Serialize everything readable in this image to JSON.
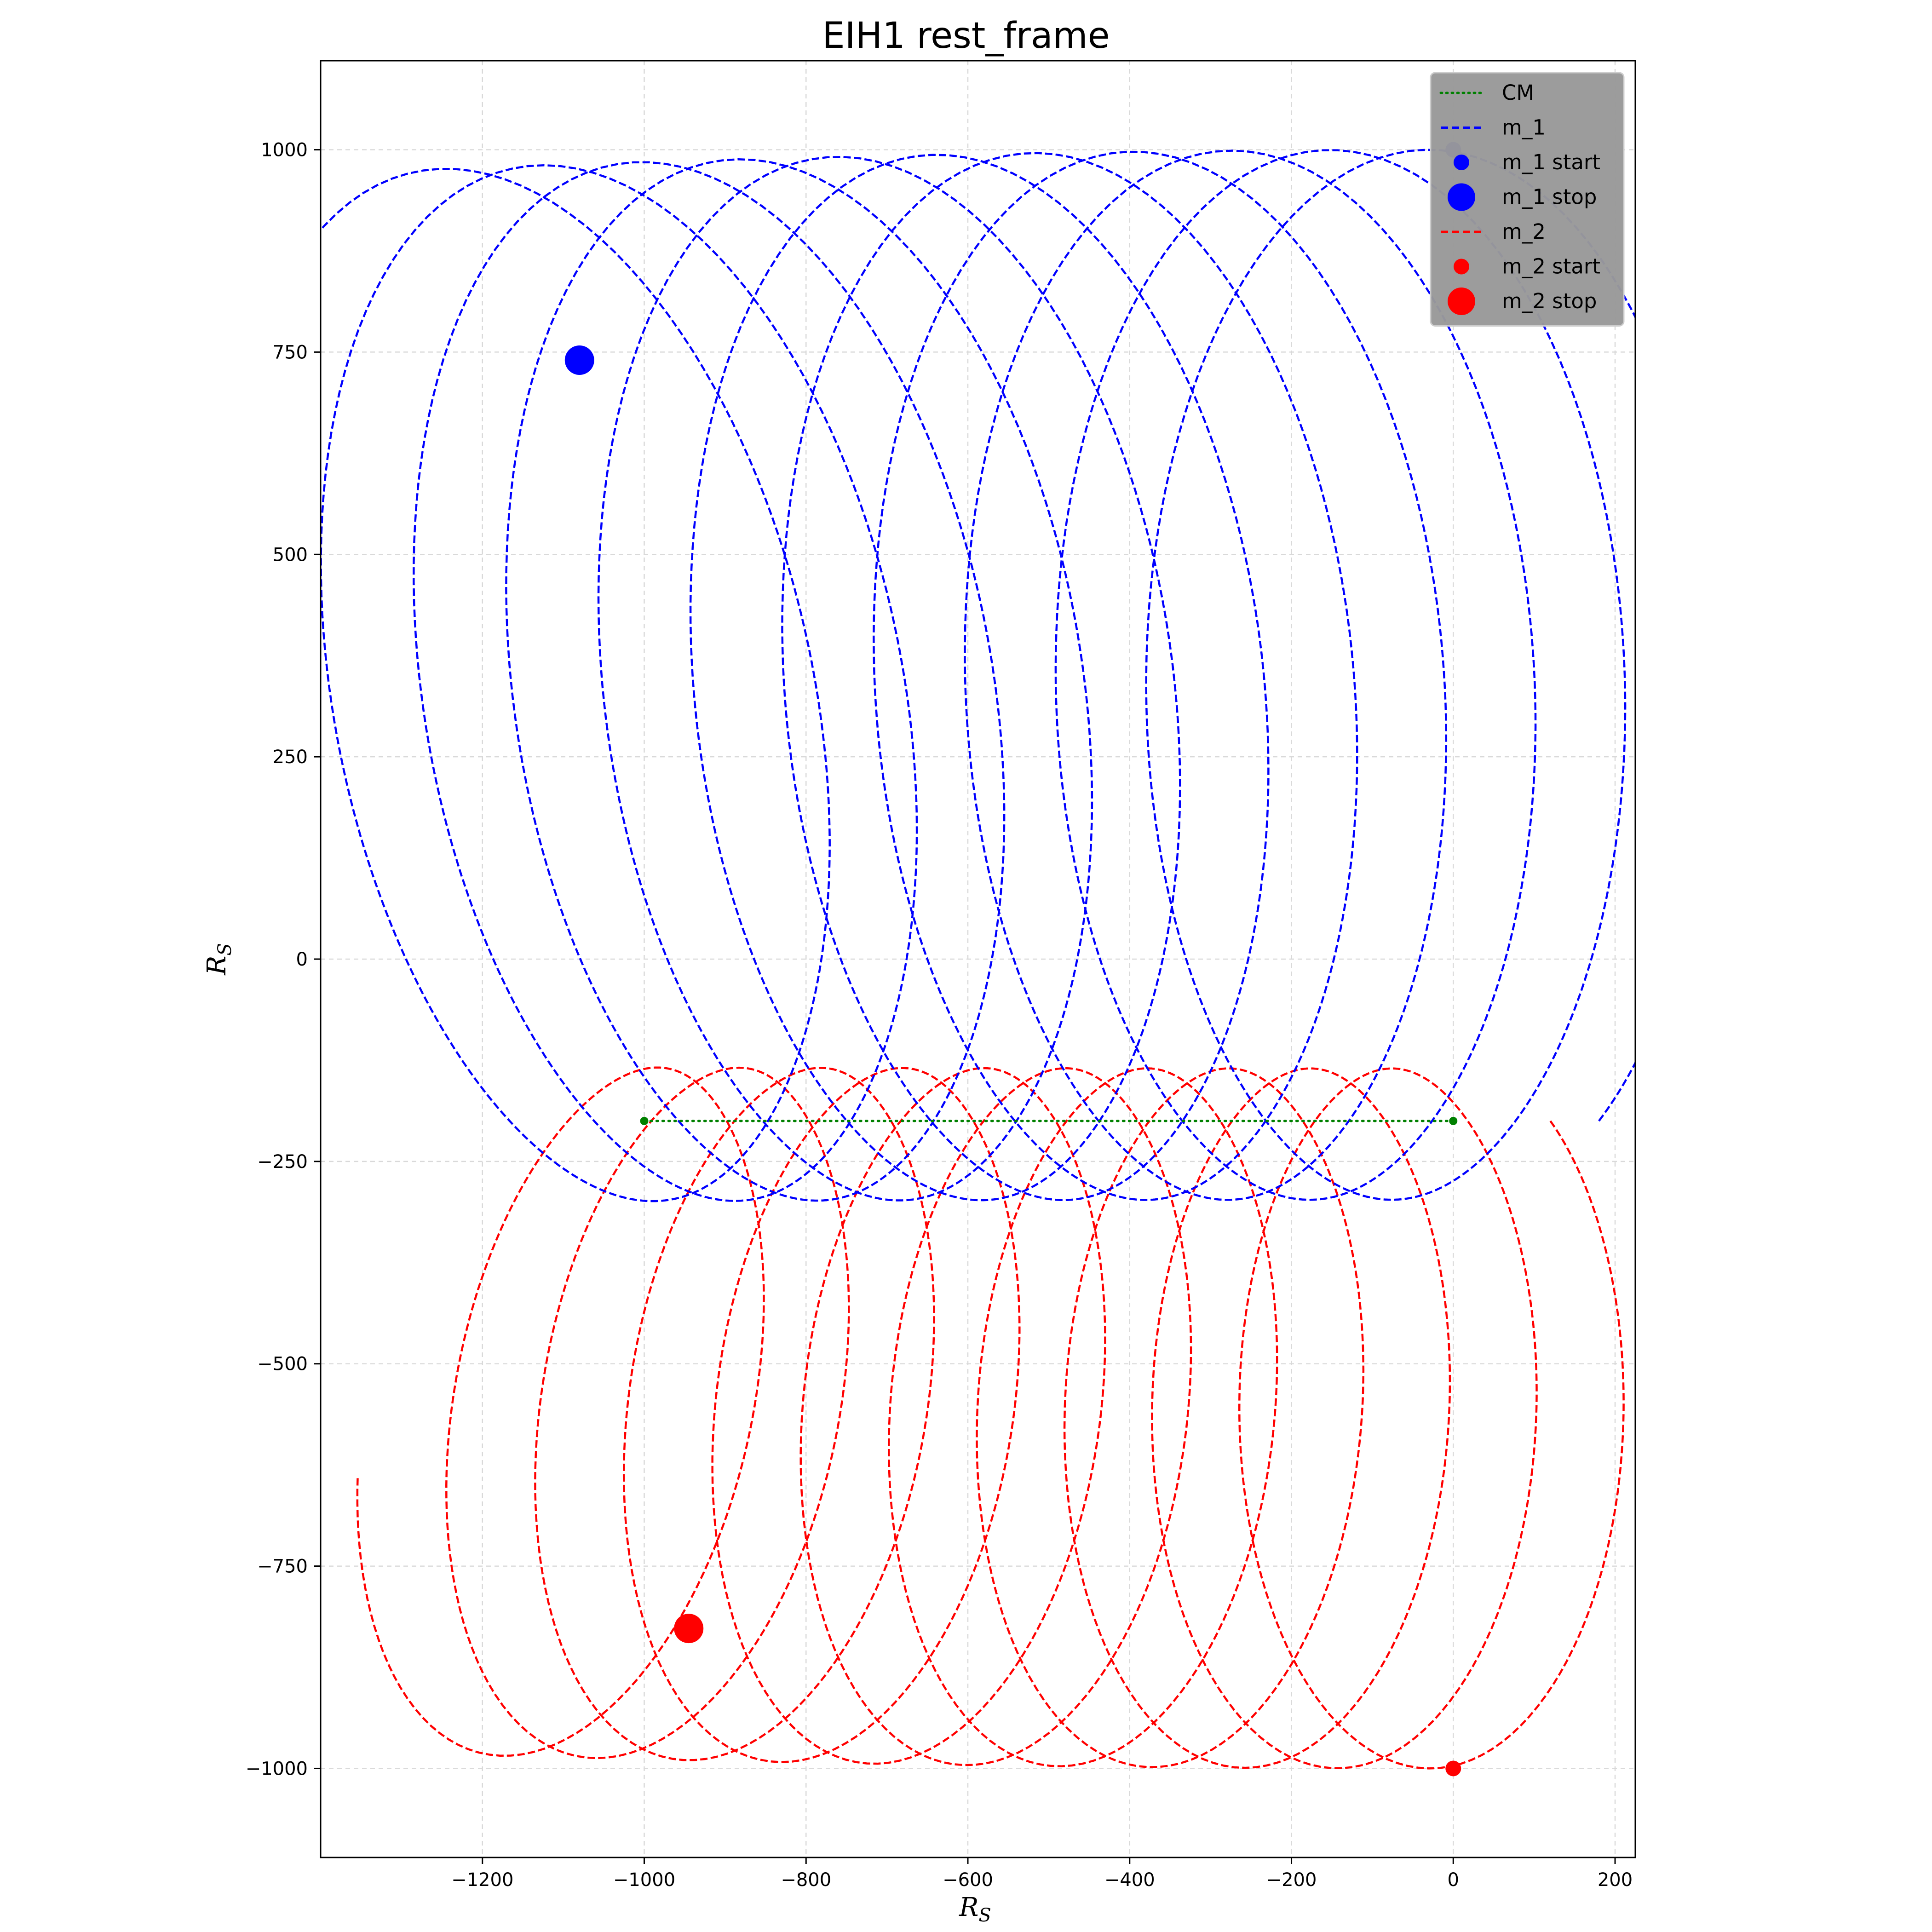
{
  "chart_data": {
    "type": "line",
    "title": "EIH1 rest_frame",
    "xlabel": "R",
    "xlabel_sub": "S",
    "ylabel": "R",
    "ylabel_sub": "S",
    "xlim": [
      -1400,
      225
    ],
    "ylim": [
      -1110,
      1110
    ],
    "xticks": [
      -1200,
      -1000,
      -800,
      -600,
      -400,
      -200,
      0,
      200
    ],
    "yticks": [
      -1000,
      -750,
      -500,
      -250,
      0,
      250,
      500,
      750,
      1000
    ],
    "xtick_labels": [
      "−1200",
      "−1000",
      "−800",
      "−600",
      "−400",
      "−200",
      "0",
      "200"
    ],
    "ytick_labels": [
      "−1000",
      "−750",
      "−500",
      "−250",
      "0",
      "250",
      "500",
      "750",
      "1000"
    ],
    "grid": true,
    "legend_position": "upper right",
    "colors": {
      "cm": "#008000",
      "m1": "#0000ff",
      "m2": "#ff0000"
    },
    "legend": [
      {
        "label": "CM",
        "kind": "line",
        "style": "dotted",
        "color": "#008000"
      },
      {
        "label": "m_1",
        "kind": "line",
        "style": "dashed",
        "color": "#0000ff"
      },
      {
        "label": "m_1 start",
        "kind": "marker",
        "size": "small",
        "color": "#0000ff"
      },
      {
        "label": "m_1 stop",
        "kind": "marker",
        "size": "large",
        "color": "#0000ff"
      },
      {
        "label": "m_2",
        "kind": "line",
        "style": "dashed",
        "color": "#ff0000"
      },
      {
        "label": "m_2 start",
        "kind": "marker",
        "size": "small",
        "color": "#ff0000"
      },
      {
        "label": "m_2 stop",
        "kind": "marker",
        "size": "large",
        "color": "#ff0000"
      }
    ],
    "series": [
      {
        "name": "CM",
        "style": "dotted",
        "color": "#008000",
        "x": [
          0,
          -1000
        ],
        "y": [
          -200,
          -200
        ],
        "endpoints": [
          [
            0,
            -200
          ],
          [
            -1000,
            -200
          ]
        ]
      },
      {
        "name": "m_1",
        "style": "dashed",
        "color": "#0000ff",
        "orbit": {
          "center": [
            0,
            -200
          ],
          "focus_to_periapsis": 1200,
          "eccentricity": 0.85,
          "turns": 10.35,
          "drift_x_per_turn": -100,
          "precession_deg_per_turn": 1.2
        },
        "start": [
          0,
          1000
        ],
        "stop": [
          -1080,
          740
        ]
      },
      {
        "name": "m_2",
        "style": "dashed",
        "color": "#ff0000",
        "orbit": {
          "center": [
            0,
            -200
          ],
          "focus_to_periapsis": 800,
          "eccentricity": 0.85,
          "turns": 10.35,
          "drift_x_per_turn": -100,
          "precession_deg_per_turn": 1.2
        },
        "start": [
          0,
          -1000
        ],
        "stop": [
          -945,
          -827
        ]
      }
    ]
  }
}
